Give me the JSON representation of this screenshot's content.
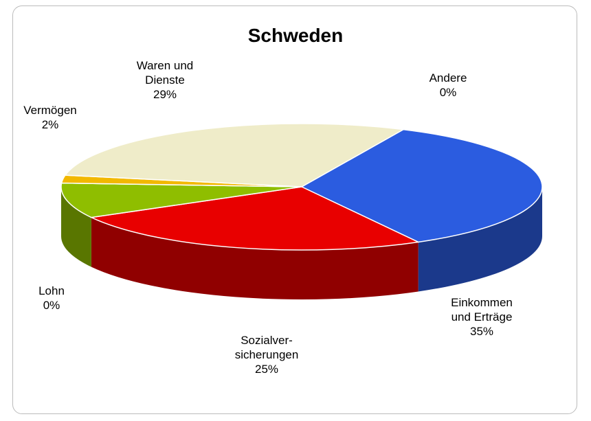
{
  "chart_data": {
    "type": "pie",
    "title": "Schweden",
    "categories": [
      "Andere",
      "Einkommen und Erträge",
      "Sozialver-sicherungen",
      null,
      "Lohn",
      "Vermögen",
      "Waren und Dienste"
    ],
    "values": [
      0,
      35,
      25,
      9,
      0,
      2,
      29
    ],
    "value_labels": [
      "0%",
      "35%",
      "25%",
      null,
      "0%",
      "2%",
      "29%"
    ],
    "colors": [
      "#a8503a",
      "#2b5ce0",
      "#e80000",
      "#8fbe00",
      "#4f6b14",
      "#f2b800",
      "#efecc9"
    ]
  }
}
